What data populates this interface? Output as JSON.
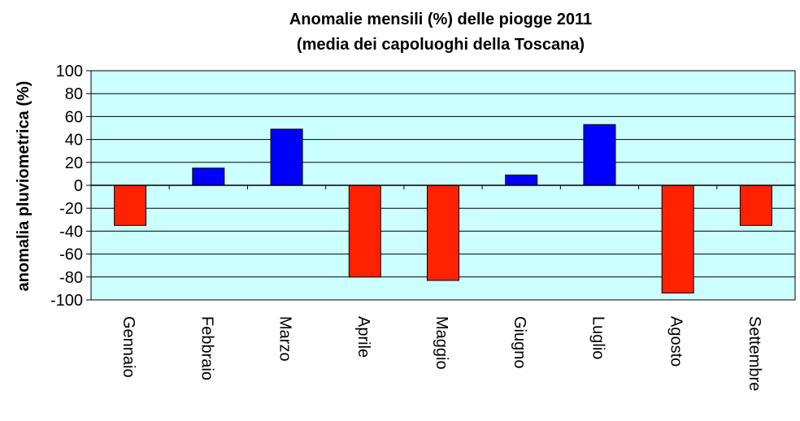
{
  "chart_data": {
    "type": "bar",
    "title": "Anomalie mensili (%) delle piogge 2011",
    "subtitle": "(media dei capoluoghi della Toscana)",
    "xlabel": "",
    "ylabel": "anomalia pluviometrica (%)",
    "categories": [
      "Gennaio",
      "Febbraio",
      "Marzo",
      "Aprile",
      "Maggio",
      "Giugno",
      "Luglio",
      "Agosto",
      "Settembre"
    ],
    "values": [
      -35,
      15,
      49,
      -80,
      -83,
      9,
      53,
      -94,
      -35
    ],
    "ylim": [
      -100,
      100
    ],
    "yticks": [
      "100",
      "80",
      "60",
      "40",
      "20",
      "0",
      "-20",
      "-40",
      "-60",
      "-80",
      "-100"
    ],
    "grid": true,
    "legend": "none",
    "colors": {
      "positive": "#0000ff",
      "negative": "#ff2200",
      "plot_background": "#ccffff",
      "grid": "#000000"
    }
  }
}
